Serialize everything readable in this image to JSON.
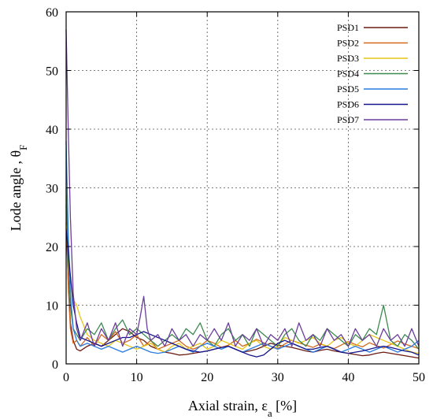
{
  "chart_data": {
    "type": "line",
    "xlabel": "Axial strain, ε_a [%]",
    "ylabel": "Lode angle , θ_F",
    "xlim": [
      0,
      50
    ],
    "ylim": [
      0,
      60
    ],
    "xticks": [
      0,
      10,
      20,
      30,
      40,
      50
    ],
    "yticks": [
      0,
      10,
      20,
      30,
      40,
      50,
      60
    ],
    "grid": true,
    "legend_position": "top-right",
    "series": [
      {
        "name": "PSD1",
        "color": "#6b1a12",
        "x": [
          0,
          0.3,
          0.6,
          1,
          1.5,
          2,
          3,
          4,
          5,
          6,
          7,
          8,
          9,
          10,
          11,
          12,
          13,
          14,
          15,
          16,
          17,
          18,
          19,
          20,
          21,
          22,
          23,
          24,
          25,
          26,
          27,
          28,
          29,
          30,
          31,
          32,
          33,
          34,
          35,
          36,
          37,
          38,
          39,
          40,
          41,
          42,
          43,
          44,
          45,
          46,
          47,
          48,
          49,
          50
        ],
        "y": [
          24,
          14,
          7,
          4,
          2.5,
          2.2,
          3,
          3.5,
          3,
          4,
          5,
          6,
          5.5,
          4.5,
          4,
          3,
          2.5,
          2,
          1.8,
          1.5,
          1.6,
          1.8,
          2,
          2.2,
          2.5,
          2.8,
          3,
          2.5,
          2,
          2.2,
          2.5,
          3,
          3.5,
          3.2,
          3,
          2.8,
          2.5,
          2.2,
          2,
          2.3,
          2.5,
          2.2,
          2,
          1.8,
          1.6,
          1.4,
          1.5,
          1.8,
          2,
          1.8,
          1.6,
          1.4,
          1.2,
          1
        ]
      },
      {
        "name": "PSD2",
        "color": "#d2691e",
        "x": [
          0,
          0.3,
          0.6,
          1,
          1.5,
          2,
          3,
          4,
          5,
          6,
          7,
          8,
          9,
          10,
          11,
          12,
          13,
          14,
          15,
          16,
          17,
          18,
          19,
          20,
          21,
          22,
          23,
          24,
          25,
          26,
          27,
          28,
          29,
          30,
          31,
          32,
          33,
          34,
          35,
          36,
          37,
          38,
          39,
          40,
          41,
          42,
          43,
          44,
          45,
          46,
          47,
          48,
          49,
          50
        ],
        "y": [
          27,
          13,
          6,
          3.5,
          4,
          3,
          4.5,
          3,
          5,
          4,
          5.5,
          3.5,
          4,
          5,
          3,
          4,
          2.5,
          3,
          3.5,
          4,
          3,
          2.5,
          3,
          4,
          3.5,
          2.8,
          3.2,
          4,
          3,
          3.5,
          4.2,
          3.6,
          3,
          2.6,
          3.4,
          4,
          3.6,
          3.2,
          2.8,
          3.4,
          3,
          2.6,
          3.2,
          3.8,
          3.3,
          2.9,
          3.6,
          3.1,
          2.7,
          3.3,
          3.9,
          3.4,
          3,
          2.6
        ]
      },
      {
        "name": "PSD3",
        "color": "#e6c619",
        "x": [
          0,
          0.3,
          0.6,
          1,
          1.5,
          2,
          3,
          4,
          5,
          6,
          7,
          8,
          9,
          10,
          11,
          12,
          13,
          14,
          15,
          16,
          17,
          18,
          19,
          20,
          21,
          22,
          23,
          24,
          25,
          26,
          27,
          28,
          29,
          30,
          31,
          32,
          33,
          34,
          35,
          36,
          37,
          38,
          39,
          40,
          41,
          42,
          43,
          44,
          45,
          46,
          47,
          48,
          49,
          50
        ],
        "y": [
          24,
          20,
          15,
          11,
          10,
          8,
          5,
          4,
          3.5,
          3,
          4,
          3.5,
          3,
          2.5,
          3,
          3.5,
          2.5,
          2,
          3,
          3.5,
          2.5,
          3,
          3.5,
          2.5,
          3,
          4,
          3.5,
          3,
          2.5,
          3.5,
          4,
          3,
          2.5,
          3,
          4.5,
          4,
          3.5,
          4,
          4.5,
          3.5,
          3,
          4,
          4.5,
          3.5,
          3,
          4,
          5,
          4.5,
          4,
          3.5,
          3,
          2.5,
          2,
          1.8
        ]
      },
      {
        "name": "PSD4",
        "color": "#3c8a4f",
        "x": [
          0,
          0.3,
          0.6,
          1,
          1.5,
          2,
          3,
          4,
          5,
          6,
          7,
          8,
          9,
          10,
          11,
          12,
          13,
          14,
          15,
          16,
          17,
          18,
          19,
          20,
          21,
          22,
          23,
          24,
          25,
          26,
          27,
          28,
          29,
          30,
          31,
          32,
          33,
          34,
          35,
          36,
          37,
          38,
          39,
          40,
          41,
          42,
          43,
          44,
          45,
          46,
          47,
          48,
          49,
          50
        ],
        "y": [
          30,
          18,
          10,
          6,
          5,
          4,
          6,
          5,
          7,
          4,
          6,
          7.5,
          5,
          6,
          5,
          4,
          3,
          4,
          5,
          4,
          6,
          5,
          7,
          4,
          3,
          5,
          6,
          4,
          5,
          3,
          6,
          5,
          4,
          3,
          5,
          6,
          4,
          3,
          5,
          4,
          6,
          5,
          4,
          3,
          5,
          4,
          6,
          5,
          10,
          4,
          3,
          5,
          4,
          2.5
        ]
      },
      {
        "name": "PSD5",
        "color": "#2a7be0",
        "x": [
          0,
          0.3,
          0.6,
          1,
          1.5,
          2,
          3,
          4,
          5,
          6,
          7,
          8,
          9,
          10,
          11,
          12,
          13,
          14,
          15,
          16,
          17,
          18,
          19,
          20,
          21,
          22,
          23,
          24,
          25,
          26,
          27,
          28,
          29,
          30,
          31,
          32,
          33,
          34,
          35,
          36,
          37,
          38,
          39,
          40,
          41,
          42,
          43,
          44,
          45,
          46,
          47,
          48,
          49,
          50
        ],
        "y": [
          38,
          22,
          12,
          6,
          4,
          3,
          3.5,
          3,
          2.5,
          3,
          2.5,
          2,
          2.5,
          3,
          2.5,
          2,
          1.8,
          2,
          2.5,
          3,
          2.5,
          2,
          3,
          3.5,
          3,
          2.5,
          3,
          2.5,
          2,
          2.5,
          3,
          3.5,
          3,
          2.5,
          3,
          3.5,
          3,
          2.5,
          2,
          2.5,
          3,
          2.5,
          2,
          2.5,
          3,
          2.5,
          2,
          2.5,
          3,
          2.5,
          2,
          2.5,
          3,
          4
        ]
      },
      {
        "name": "PSD6",
        "color": "#14148c",
        "x": [
          0,
          0.3,
          0.6,
          1,
          1.5,
          2,
          3,
          4,
          5,
          6,
          7,
          8,
          9,
          10,
          11,
          12,
          13,
          14,
          15,
          16,
          17,
          18,
          19,
          20,
          21,
          22,
          23,
          24,
          25,
          26,
          27,
          28,
          29,
          30,
          31,
          32,
          33,
          34,
          35,
          36,
          37,
          38,
          39,
          40,
          41,
          42,
          43,
          44,
          45,
          46,
          47,
          48,
          49,
          50
        ],
        "y": [
          23,
          19,
          15,
          10,
          7,
          4.5,
          4,
          3.5,
          3,
          3.5,
          4,
          4.5,
          4.5,
          5,
          5.5,
          5,
          4.5,
          4,
          3.5,
          3,
          2.5,
          2.2,
          2,
          2.2,
          2.5,
          2.8,
          3,
          2.5,
          2,
          1.5,
          1.2,
          1.5,
          2.5,
          3.5,
          4,
          3.5,
          3,
          2.5,
          2.5,
          2.8,
          3,
          2.5,
          2,
          1.8,
          2,
          2.2,
          2.5,
          2.8,
          3,
          2.8,
          2.5,
          2.2,
          2,
          1.5
        ]
      },
      {
        "name": "PSD7",
        "color": "#6a3d9a",
        "x": [
          0,
          0.3,
          0.6,
          1,
          1.5,
          2,
          3,
          4,
          5,
          6,
          7,
          8,
          9,
          10,
          10.5,
          11,
          11.5,
          12,
          13,
          14,
          15,
          16,
          17,
          18,
          19,
          20,
          21,
          22,
          23,
          24,
          25,
          26,
          27,
          28,
          29,
          30,
          31,
          32,
          33,
          34,
          35,
          36,
          37,
          38,
          39,
          40,
          41,
          42,
          43,
          44,
          45,
          46,
          47,
          48,
          49,
          50
        ],
        "y": [
          57,
          40,
          25,
          12,
          6,
          4,
          7,
          3,
          6,
          4,
          7,
          3,
          6,
          5,
          8,
          11.5,
          6,
          4,
          5,
          3,
          6,
          4,
          5,
          3,
          5,
          4,
          6,
          4,
          7,
          3,
          5,
          4,
          6,
          3,
          5,
          4,
          6,
          3,
          7,
          4,
          5,
          3,
          6,
          4,
          5,
          3,
          6,
          4,
          5,
          3,
          6,
          4,
          5,
          3,
          6,
          3
        ]
      }
    ]
  }
}
